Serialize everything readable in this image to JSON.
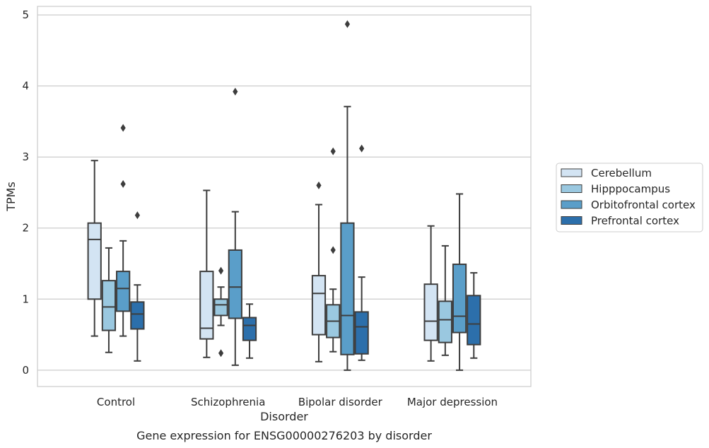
{
  "chart_data": {
    "type": "box",
    "title": "",
    "caption": "Gene expression for ENSG00000276203 by disorder",
    "xlabel": "Disorder",
    "ylabel": "TPMs",
    "ylim": [
      -0.23,
      5.12
    ],
    "yticks": [
      0,
      1,
      2,
      3,
      4,
      5
    ],
    "grid": "horizontal",
    "legend_position": "right",
    "categories": [
      "Control",
      "Schizophrenia",
      "Bipolar disorder",
      "Major depression"
    ],
    "series": [
      {
        "name": "Cerebellum",
        "color": "#d3e4f3",
        "boxes": [
          {
            "whisker_low": 0.48,
            "q1": 1.0,
            "median": 1.84,
            "q3": 2.07,
            "whisker_high": 2.95,
            "outliers": []
          },
          {
            "whisker_low": 0.18,
            "q1": 0.44,
            "median": 0.59,
            "q3": 1.39,
            "whisker_high": 2.53,
            "outliers": []
          },
          {
            "whisker_low": 0.12,
            "q1": 0.5,
            "median": 1.08,
            "q3": 1.33,
            "whisker_high": 2.33,
            "outliers": [
              2.6
            ]
          },
          {
            "whisker_low": 0.13,
            "q1": 0.42,
            "median": 0.69,
            "q3": 1.21,
            "whisker_high": 2.03,
            "outliers": []
          }
        ]
      },
      {
        "name": "Hipppocampus",
        "color": "#9ac8e0",
        "boxes": [
          {
            "whisker_low": 0.25,
            "q1": 0.56,
            "median": 0.89,
            "q3": 1.26,
            "whisker_high": 1.72,
            "outliers": []
          },
          {
            "whisker_low": 0.63,
            "q1": 0.77,
            "median": 0.92,
            "q3": 1.0,
            "whisker_high": 1.17,
            "outliers": [
              1.4,
              0.24
            ]
          },
          {
            "whisker_low": 0.26,
            "q1": 0.46,
            "median": 0.69,
            "q3": 0.92,
            "whisker_high": 1.14,
            "outliers": [
              1.69,
              3.08
            ]
          },
          {
            "whisker_low": 0.21,
            "q1": 0.39,
            "median": 0.71,
            "q3": 0.97,
            "whisker_high": 1.75,
            "outliers": []
          }
        ]
      },
      {
        "name": "Orbitofrontal cortex",
        "color": "#5a9ec9",
        "boxes": [
          {
            "whisker_low": 0.48,
            "q1": 0.83,
            "median": 1.15,
            "q3": 1.39,
            "whisker_high": 1.82,
            "outliers": [
              2.62,
              3.41
            ]
          },
          {
            "whisker_low": 0.07,
            "q1": 0.73,
            "median": 1.17,
            "q3": 1.69,
            "whisker_high": 2.23,
            "outliers": [
              3.92
            ]
          },
          {
            "whisker_low": 0.0,
            "q1": 0.22,
            "median": 0.77,
            "q3": 2.07,
            "whisker_high": 3.71,
            "outliers": [
              4.87
            ]
          },
          {
            "whisker_low": 0.0,
            "q1": 0.53,
            "median": 0.76,
            "q3": 1.49,
            "whisker_high": 2.48,
            "outliers": []
          }
        ]
      },
      {
        "name": "Prefrontal cortex",
        "color": "#2c6fab",
        "boxes": [
          {
            "whisker_low": 0.13,
            "q1": 0.58,
            "median": 0.79,
            "q3": 0.96,
            "whisker_high": 1.2,
            "outliers": [
              2.18
            ]
          },
          {
            "whisker_low": 0.17,
            "q1": 0.42,
            "median": 0.63,
            "q3": 0.74,
            "whisker_high": 0.93,
            "outliers": []
          },
          {
            "whisker_low": 0.14,
            "q1": 0.23,
            "median": 0.61,
            "q3": 0.82,
            "whisker_high": 1.31,
            "outliers": [
              3.12
            ]
          },
          {
            "whisker_low": 0.17,
            "q1": 0.36,
            "median": 0.65,
            "q3": 1.05,
            "whisker_high": 1.37,
            "outliers": []
          }
        ]
      }
    ]
  }
}
